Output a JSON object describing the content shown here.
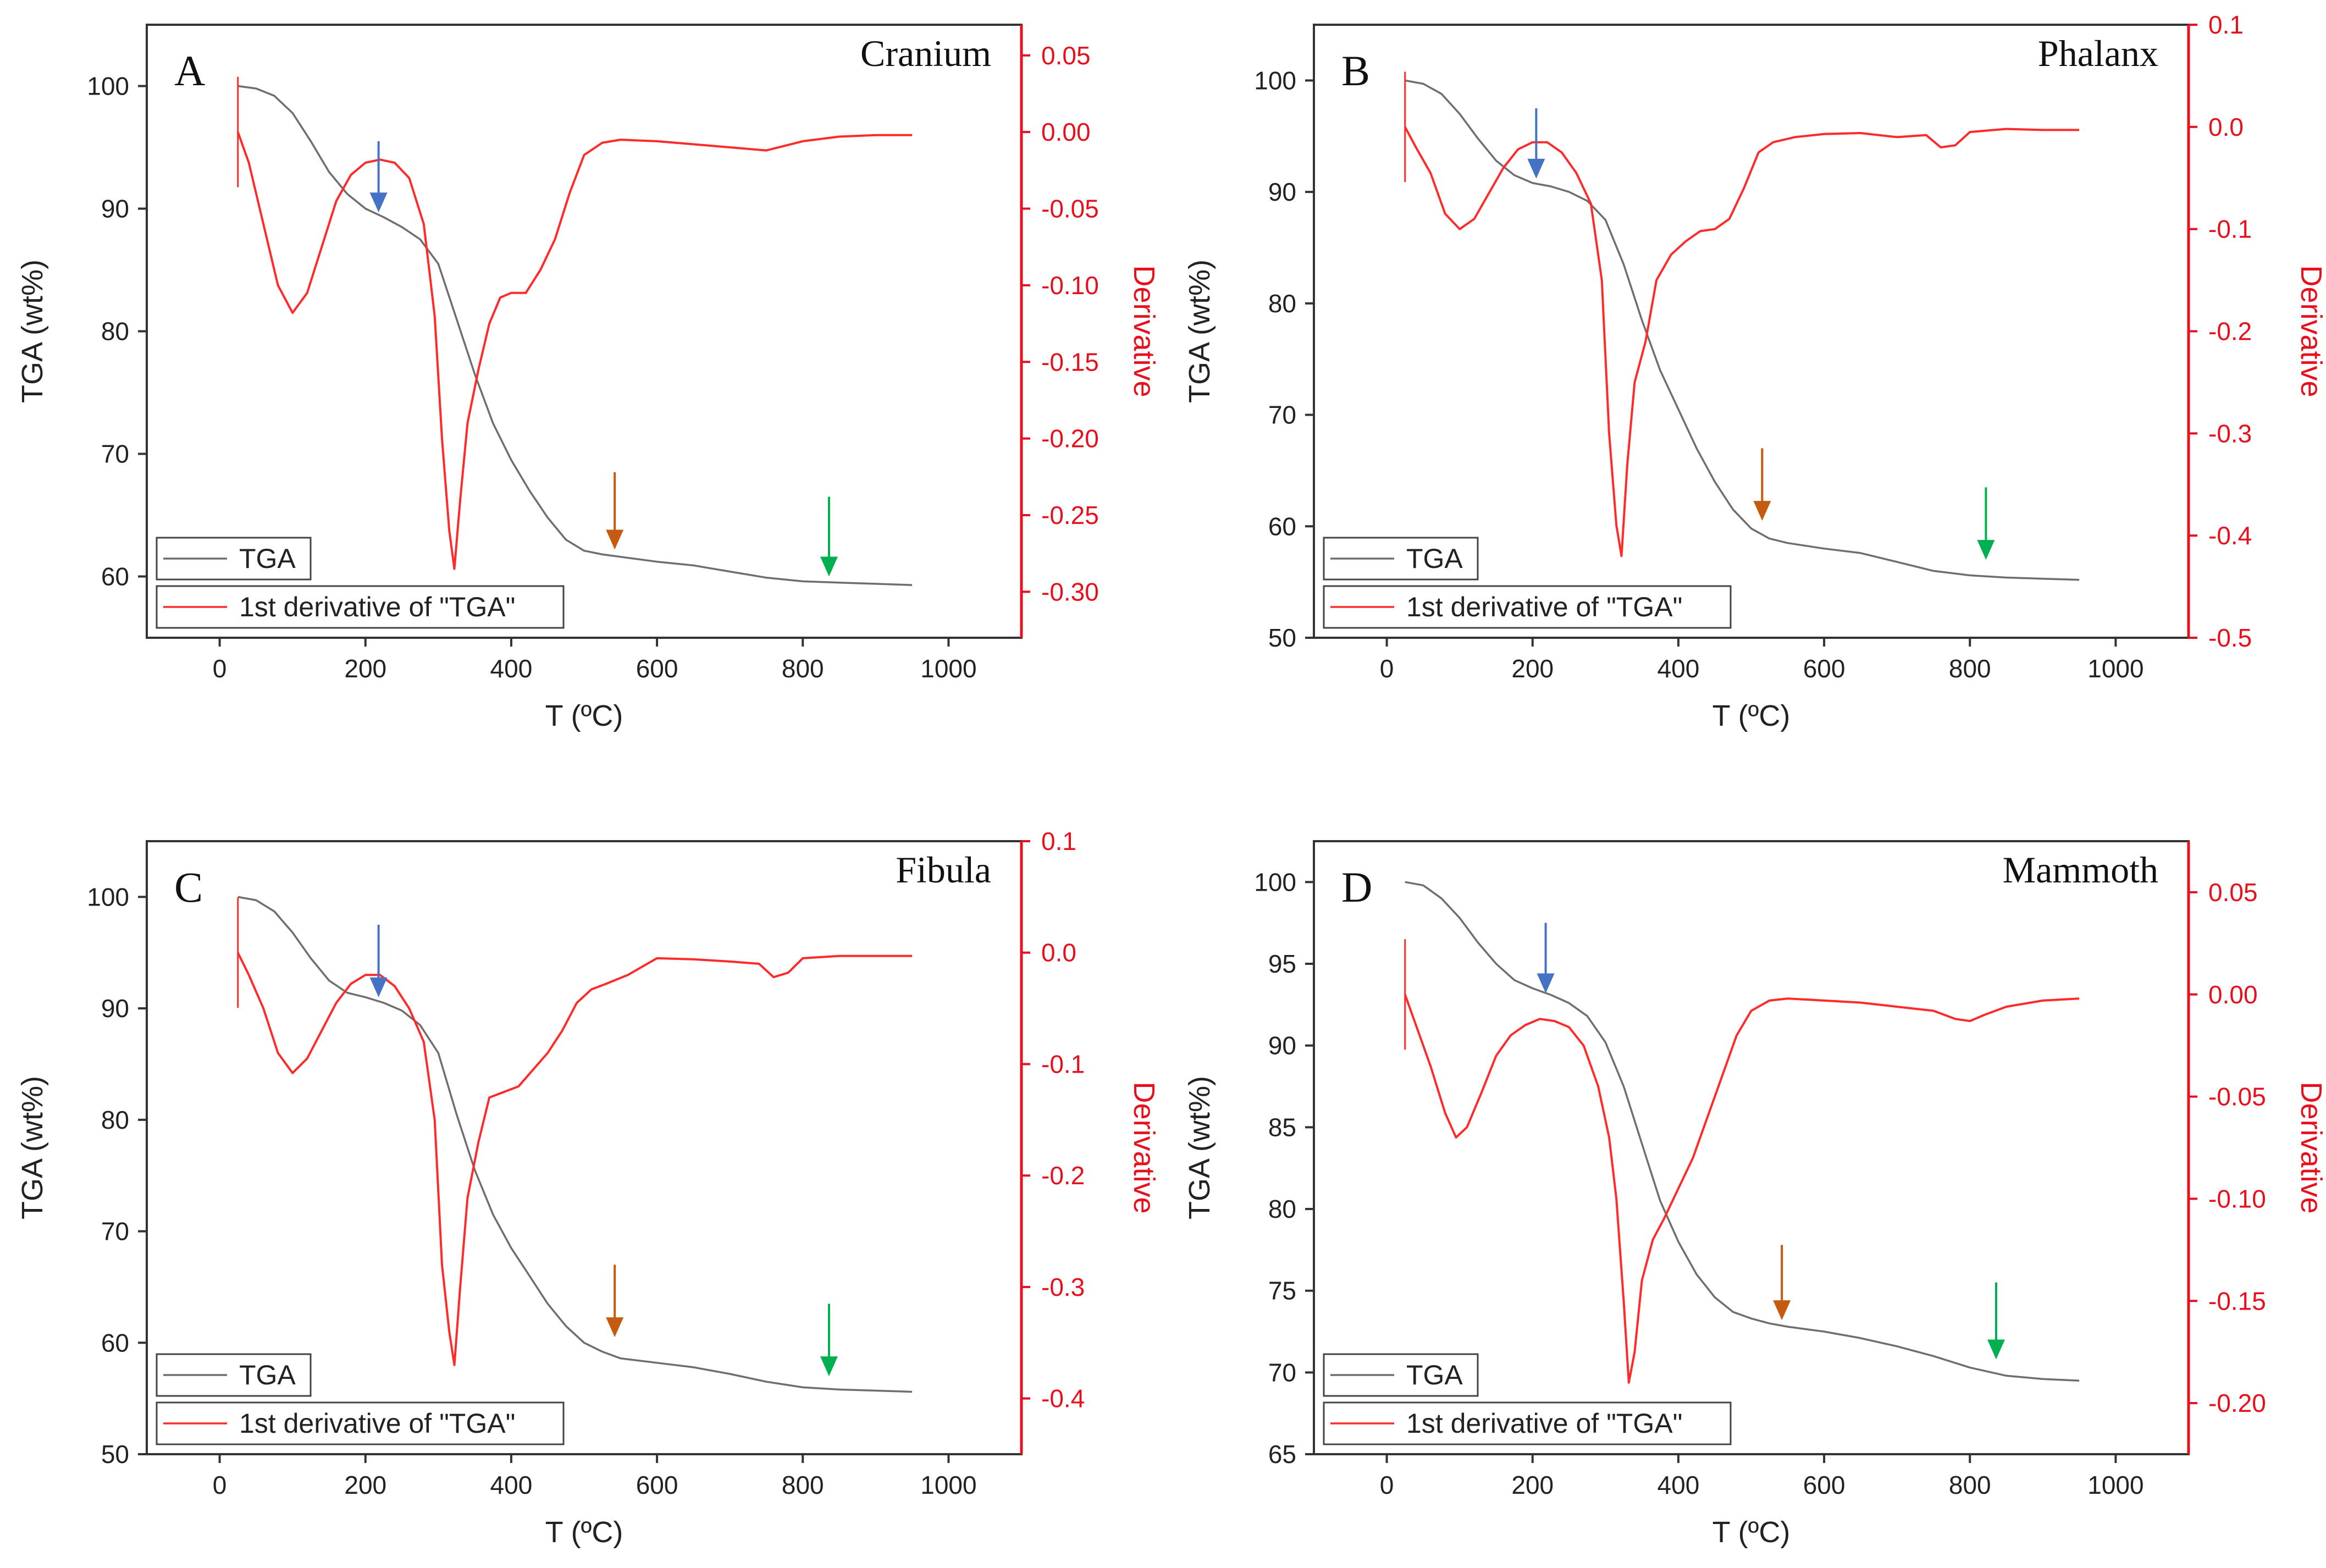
{
  "colors": {
    "tga": "#6e6e6e",
    "derivative": "#ff2b2b",
    "axis_right": "#e8101c",
    "frame": "#333333",
    "arrow_blue": "#4472c4",
    "arrow_orange": "#c55a11",
    "arrow_green": "#00b050"
  },
  "chart_data": [
    {
      "type": "line",
      "panel_letter": "A",
      "title": "Cranium",
      "xlabel": "T (ºC)",
      "ylabel": "TGA (wt%)",
      "y2label": "Derivative",
      "xlim": [
        -100,
        1100
      ],
      "ylim": [
        55,
        105
      ],
      "y2lim": [
        -0.33,
        0.07
      ],
      "x_ticks": [
        0,
        200,
        400,
        600,
        800,
        1000
      ],
      "x_tick_labels": [
        "0",
        "200",
        "400",
        "600",
        "800",
        "1000"
      ],
      "y_ticks": [
        60,
        70,
        80,
        90,
        100
      ],
      "y_tick_labels": [
        "60",
        "70",
        "80",
        "90",
        "100"
      ],
      "y2_ticks": [
        0.05,
        0.0,
        -0.05,
        -0.1,
        -0.15,
        -0.2,
        -0.25,
        -0.3
      ],
      "y2_tick_labels": [
        "0.05",
        "0.00",
        "-0.05",
        "-0.10",
        "-0.15",
        "-0.20",
        "-0.25",
        "-0.30"
      ],
      "legend": [
        "TGA",
        "1st derivative of \"TGA\""
      ],
      "legend_position": "bottom-left",
      "series": [
        {
          "name": "TGA",
          "axis": "left",
          "x": [
            25,
            50,
            75,
            100,
            125,
            150,
            175,
            200,
            225,
            250,
            275,
            300,
            325,
            350,
            375,
            400,
            425,
            450,
            475,
            500,
            525,
            550,
            600,
            650,
            700,
            750,
            800,
            850,
            900,
            950
          ],
          "y": [
            100.0,
            99.8,
            99.2,
            97.8,
            95.5,
            93.0,
            91.2,
            90.0,
            89.3,
            88.5,
            87.5,
            85.5,
            81.0,
            76.5,
            72.5,
            69.5,
            67.0,
            64.8,
            63.0,
            62.1,
            61.8,
            61.6,
            61.2,
            60.9,
            60.4,
            59.9,
            59.6,
            59.5,
            59.4,
            59.3
          ]
        },
        {
          "name": "1st derivative of \"TGA\"",
          "axis": "right",
          "x": [
            25,
            40,
            60,
            80,
            100,
            120,
            140,
            160,
            180,
            200,
            220,
            240,
            260,
            280,
            295,
            305,
            315,
            322,
            330,
            340,
            355,
            370,
            385,
            400,
            420,
            440,
            460,
            480,
            500,
            525,
            550,
            600,
            650,
            700,
            750,
            800,
            850,
            900,
            950
          ],
          "y": [
            0.0,
            -0.02,
            -0.06,
            -0.1,
            -0.118,
            -0.105,
            -0.075,
            -0.045,
            -0.028,
            -0.02,
            -0.018,
            -0.02,
            -0.03,
            -0.06,
            -0.12,
            -0.2,
            -0.26,
            -0.285,
            -0.24,
            -0.19,
            -0.155,
            -0.125,
            -0.108,
            -0.105,
            -0.105,
            -0.09,
            -0.07,
            -0.04,
            -0.015,
            -0.007,
            -0.005,
            -0.006,
            -0.008,
            -0.01,
            -0.012,
            -0.006,
            -0.003,
            -0.002,
            -0.002
          ]
        }
      ],
      "arrows": [
        {
          "color": "blue",
          "x": 218,
          "y_tip": 89.7,
          "y_tail": 95.5
        },
        {
          "color": "orange",
          "x": 542,
          "y_tip": 62.2,
          "y_tail": 68.5
        },
        {
          "color": "green",
          "x": 836,
          "y_tip": 60.0,
          "y_tail": 66.5
        }
      ]
    },
    {
      "type": "line",
      "panel_letter": "B",
      "title": "Phalanx",
      "xlabel": "T (ºC)",
      "ylabel": "TGA (wt%)",
      "y2label": "Derivative",
      "xlim": [
        -100,
        1100
      ],
      "ylim": [
        50,
        105
      ],
      "y2lim": [
        -0.5,
        0.1
      ],
      "x_ticks": [
        0,
        200,
        400,
        600,
        800,
        1000
      ],
      "x_tick_labels": [
        "0",
        "200",
        "400",
        "600",
        "800",
        "1000"
      ],
      "y_ticks": [
        50,
        60,
        70,
        80,
        90,
        100
      ],
      "y_tick_labels": [
        "50",
        "60",
        "70",
        "80",
        "90",
        "100"
      ],
      "y2_ticks": [
        0.1,
        0.0,
        -0.1,
        -0.2,
        -0.3,
        -0.4,
        -0.5
      ],
      "y2_tick_labels": [
        "0.1",
        "0.0",
        "-0.1",
        "-0.2",
        "-0.3",
        "-0.4",
        "-0.5"
      ],
      "legend": [
        "TGA",
        "1st derivative of \"TGA\""
      ],
      "legend_position": "bottom-left",
      "series": [
        {
          "name": "TGA",
          "axis": "left",
          "x": [
            25,
            50,
            75,
            100,
            125,
            150,
            175,
            200,
            225,
            250,
            275,
            300,
            325,
            350,
            375,
            400,
            425,
            450,
            475,
            500,
            525,
            550,
            600,
            650,
            700,
            750,
            800,
            850,
            900,
            950
          ],
          "y": [
            100.0,
            99.7,
            98.8,
            97.0,
            94.8,
            92.8,
            91.5,
            90.8,
            90.5,
            90.0,
            89.2,
            87.5,
            83.5,
            78.5,
            74.0,
            70.5,
            67.0,
            64.0,
            61.5,
            59.8,
            58.9,
            58.5,
            58.0,
            57.6,
            56.8,
            56.0,
            55.6,
            55.4,
            55.3,
            55.2
          ]
        },
        {
          "name": "1st derivative of \"TGA\"",
          "axis": "right",
          "x": [
            25,
            40,
            60,
            80,
            100,
            120,
            140,
            160,
            180,
            200,
            220,
            240,
            260,
            280,
            295,
            305,
            315,
            322,
            330,
            340,
            355,
            370,
            390,
            410,
            430,
            450,
            470,
            490,
            510,
            530,
            560,
            600,
            650,
            700,
            740,
            760,
            780,
            800,
            850,
            900,
            950
          ],
          "y": [
            0.0,
            -0.02,
            -0.045,
            -0.085,
            -0.1,
            -0.09,
            -0.065,
            -0.04,
            -0.022,
            -0.015,
            -0.015,
            -0.025,
            -0.045,
            -0.075,
            -0.15,
            -0.3,
            -0.39,
            -0.42,
            -0.33,
            -0.25,
            -0.21,
            -0.15,
            -0.125,
            -0.112,
            -0.102,
            -0.1,
            -0.09,
            -0.06,
            -0.025,
            -0.015,
            -0.01,
            -0.007,
            -0.006,
            -0.01,
            -0.008,
            -0.02,
            -0.018,
            -0.005,
            -0.002,
            -0.003,
            -0.003
          ]
        }
      ],
      "arrows": [
        {
          "color": "blue",
          "x": 205,
          "y_tip": 91.2,
          "y_tail": 97.5
        },
        {
          "color": "orange",
          "x": 515,
          "y_tip": 60.5,
          "y_tail": 67.0
        },
        {
          "color": "green",
          "x": 822,
          "y_tip": 57.0,
          "y_tail": 63.5
        }
      ]
    },
    {
      "type": "line",
      "panel_letter": "C",
      "title": "Fibula",
      "xlabel": "T (ºC)",
      "ylabel": "TGA (wt%)",
      "y2label": "Derivative",
      "xlim": [
        -100,
        1100
      ],
      "ylim": [
        50,
        105
      ],
      "y2lim": [
        -0.45,
        0.1
      ],
      "x_ticks": [
        0,
        200,
        400,
        600,
        800,
        1000
      ],
      "x_tick_labels": [
        "0",
        "200",
        "400",
        "600",
        "800",
        "1000"
      ],
      "y_ticks": [
        50,
        60,
        70,
        80,
        90,
        100
      ],
      "y_tick_labels": [
        "50",
        "60",
        "70",
        "80",
        "90",
        "100"
      ],
      "y2_ticks": [
        0.1,
        0.0,
        -0.1,
        -0.2,
        -0.3,
        -0.4
      ],
      "y2_tick_labels": [
        "0.1",
        "0.0",
        "-0.1",
        "-0.2",
        "-0.3",
        "-0.4"
      ],
      "legend": [
        "TGA",
        "1st derivative of \"TGA\""
      ],
      "legend_position": "bottom-left",
      "series": [
        {
          "name": "TGA",
          "axis": "left",
          "x": [
            25,
            50,
            75,
            100,
            125,
            150,
            175,
            200,
            225,
            250,
            275,
            300,
            325,
            350,
            375,
            400,
            425,
            450,
            475,
            500,
            525,
            550,
            600,
            650,
            700,
            750,
            800,
            850,
            900,
            950
          ],
          "y": [
            100.0,
            99.7,
            98.7,
            96.8,
            94.5,
            92.5,
            91.4,
            91.0,
            90.5,
            89.8,
            88.5,
            86.0,
            80.5,
            75.5,
            71.5,
            68.5,
            66.0,
            63.5,
            61.5,
            60.0,
            59.2,
            58.6,
            58.2,
            57.8,
            57.2,
            56.5,
            56.0,
            55.8,
            55.7,
            55.6
          ]
        },
        {
          "name": "1st derivative of \"TGA\"",
          "axis": "right",
          "x": [
            25,
            40,
            60,
            80,
            100,
            120,
            140,
            160,
            180,
            200,
            220,
            240,
            260,
            280,
            295,
            305,
            315,
            322,
            330,
            340,
            355,
            370,
            390,
            410,
            430,
            450,
            470,
            490,
            510,
            530,
            560,
            600,
            650,
            700,
            740,
            760,
            780,
            800,
            850,
            900,
            950
          ],
          "y": [
            0.0,
            -0.02,
            -0.05,
            -0.09,
            -0.108,
            -0.095,
            -0.07,
            -0.045,
            -0.028,
            -0.02,
            -0.02,
            -0.03,
            -0.05,
            -0.08,
            -0.15,
            -0.28,
            -0.34,
            -0.37,
            -0.3,
            -0.22,
            -0.17,
            -0.13,
            -0.125,
            -0.12,
            -0.105,
            -0.09,
            -0.07,
            -0.045,
            -0.033,
            -0.028,
            -0.02,
            -0.005,
            -0.006,
            -0.008,
            -0.01,
            -0.022,
            -0.018,
            -0.005,
            -0.003,
            -0.003,
            -0.003
          ]
        }
      ],
      "arrows": [
        {
          "color": "blue",
          "x": 218,
          "y_tip": 91.0,
          "y_tail": 97.5
        },
        {
          "color": "orange",
          "x": 542,
          "y_tip": 60.5,
          "y_tail": 67.0
        },
        {
          "color": "green",
          "x": 836,
          "y_tip": 57.0,
          "y_tail": 63.5
        }
      ]
    },
    {
      "type": "line",
      "panel_letter": "D",
      "title": "Mammoth",
      "xlabel": "T (ºC)",
      "ylabel": "TGA (wt%)",
      "y2label": "Derivative",
      "xlim": [
        -100,
        1100
      ],
      "ylim": [
        65,
        102.5
      ],
      "y2lim": [
        -0.225,
        0.075
      ],
      "x_ticks": [
        0,
        200,
        400,
        600,
        800,
        1000
      ],
      "x_tick_labels": [
        "0",
        "200",
        "400",
        "600",
        "800",
        "1000"
      ],
      "y_ticks": [
        65,
        70,
        75,
        80,
        85,
        90,
        95,
        100
      ],
      "y_tick_labels": [
        "65",
        "70",
        "75",
        "80",
        "85",
        "90",
        "95",
        "100"
      ],
      "y2_ticks": [
        0.05,
        0.0,
        -0.05,
        -0.1,
        -0.15,
        -0.2
      ],
      "y2_tick_labels": [
        "0.05",
        "0.00",
        "-0.05",
        "-0.10",
        "-0.15",
        "-0.20"
      ],
      "legend": [
        "TGA",
        "1st derivative of \"TGA\""
      ],
      "legend_position": "bottom-left",
      "series": [
        {
          "name": "TGA",
          "axis": "left",
          "x": [
            25,
            50,
            75,
            100,
            125,
            150,
            175,
            200,
            225,
            250,
            275,
            300,
            325,
            350,
            375,
            400,
            425,
            450,
            475,
            500,
            525,
            550,
            600,
            650,
            700,
            750,
            800,
            850,
            900,
            950
          ],
          "y": [
            100.0,
            99.8,
            99.0,
            97.8,
            96.3,
            95.0,
            94.0,
            93.5,
            93.1,
            92.6,
            91.8,
            90.2,
            87.5,
            84.0,
            80.5,
            78.0,
            76.0,
            74.6,
            73.7,
            73.3,
            73.0,
            72.8,
            72.5,
            72.1,
            71.6,
            71.0,
            70.3,
            69.8,
            69.6,
            69.5
          ]
        },
        {
          "name": "1st derivative of \"TGA\"",
          "axis": "right",
          "x": [
            25,
            40,
            60,
            80,
            95,
            110,
            130,
            150,
            170,
            190,
            210,
            230,
            250,
            270,
            290,
            305,
            315,
            325,
            332,
            340,
            350,
            365,
            380,
            400,
            420,
            440,
            460,
            480,
            500,
            525,
            550,
            600,
            650,
            700,
            750,
            780,
            800,
            820,
            850,
            900,
            950
          ],
          "y": [
            0.0,
            -0.015,
            -0.035,
            -0.058,
            -0.07,
            -0.065,
            -0.048,
            -0.03,
            -0.02,
            -0.015,
            -0.012,
            -0.013,
            -0.016,
            -0.025,
            -0.045,
            -0.07,
            -0.1,
            -0.15,
            -0.19,
            -0.175,
            -0.14,
            -0.12,
            -0.11,
            -0.095,
            -0.08,
            -0.06,
            -0.04,
            -0.02,
            -0.008,
            -0.003,
            -0.002,
            -0.003,
            -0.004,
            -0.006,
            -0.008,
            -0.012,
            -0.013,
            -0.01,
            -0.006,
            -0.003,
            -0.002
          ]
        }
      ],
      "arrows": [
        {
          "color": "blue",
          "x": 218,
          "y_tip": 93.2,
          "y_tail": 97.5
        },
        {
          "color": "orange",
          "x": 542,
          "y_tip": 73.2,
          "y_tail": 77.8
        },
        {
          "color": "green",
          "x": 836,
          "y_tip": 70.8,
          "y_tail": 75.5
        }
      ]
    }
  ]
}
